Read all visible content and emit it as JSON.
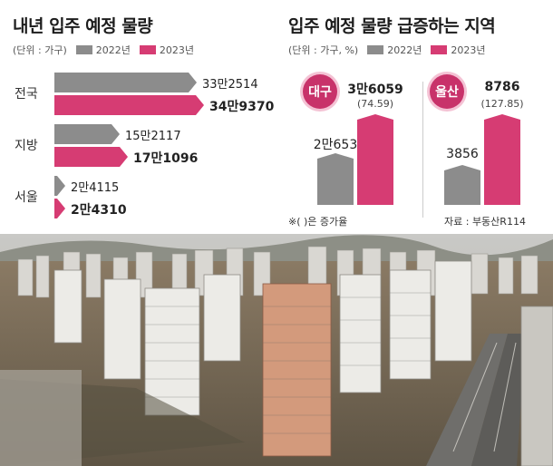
{
  "left_panel": {
    "title": "내년 입주 예정 물량",
    "unit": "(단위 : 가구)",
    "legend_2022": "2022년",
    "legend_2023": "2023년"
  },
  "right_panel": {
    "title": "입주 예정 물량 급증하는 지역",
    "unit": "(단위 : 가구, %)",
    "legend_2022": "2022년",
    "legend_2023": "2023년",
    "note": "※( )은 증가율",
    "source": "자료 : 부동산R114"
  },
  "colors": {
    "y2022": "#8c8c8c",
    "y2023": "#d63c73",
    "badge": "#c8326a"
  },
  "chart_data": [
    {
      "type": "bar",
      "orientation": "horizontal",
      "title": "내년 입주 예정 물량",
      "unit": "(단위 : 가구)",
      "categories": [
        "전국",
        "지방",
        "서울"
      ],
      "series": [
        {
          "name": "2022년",
          "values": [
            332514,
            152117,
            24115
          ],
          "labels": [
            "33만2514",
            "15만2117",
            "2만4115"
          ]
        },
        {
          "name": "2023년",
          "values": [
            349370,
            171096,
            24310
          ],
          "labels": [
            "34만9370",
            "17만1096",
            "2만4310"
          ]
        }
      ]
    },
    {
      "type": "bar",
      "orientation": "vertical",
      "title": "입주 예정 물량 급증하는 지역",
      "unit": "(단위 : 가구, %)",
      "categories": [
        "대구",
        "울산"
      ],
      "series": [
        {
          "name": "2022년",
          "values": [
            20653,
            3856
          ],
          "labels": [
            "2만653",
            "3856"
          ]
        },
        {
          "name": "2023년",
          "values": [
            36059,
            8786
          ],
          "labels": [
            "3만6059",
            "8786"
          ]
        }
      ],
      "growth_rate_pct": [
        74.59,
        127.85
      ],
      "growth_rate_labels": [
        "(74.59)",
        "(127.85)"
      ]
    }
  ]
}
